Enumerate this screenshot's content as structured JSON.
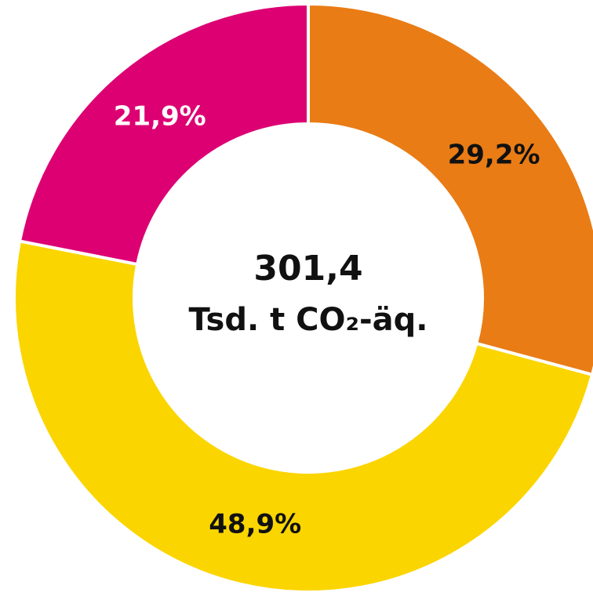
{
  "chart_data": {
    "type": "donut",
    "values": [
      29.2,
      48.9,
      21.9
    ],
    "value_labels": [
      "29,2%",
      "48,9%",
      "21,9%"
    ],
    "colors": [
      "#e97c15",
      "#fbd500",
      "#dc0073"
    ],
    "value_label_colors": [
      "#111111",
      "#111111",
      "#ffffff"
    ],
    "center_text": [
      "301,4",
      "Tsd. t CO₂-äq."
    ]
  }
}
